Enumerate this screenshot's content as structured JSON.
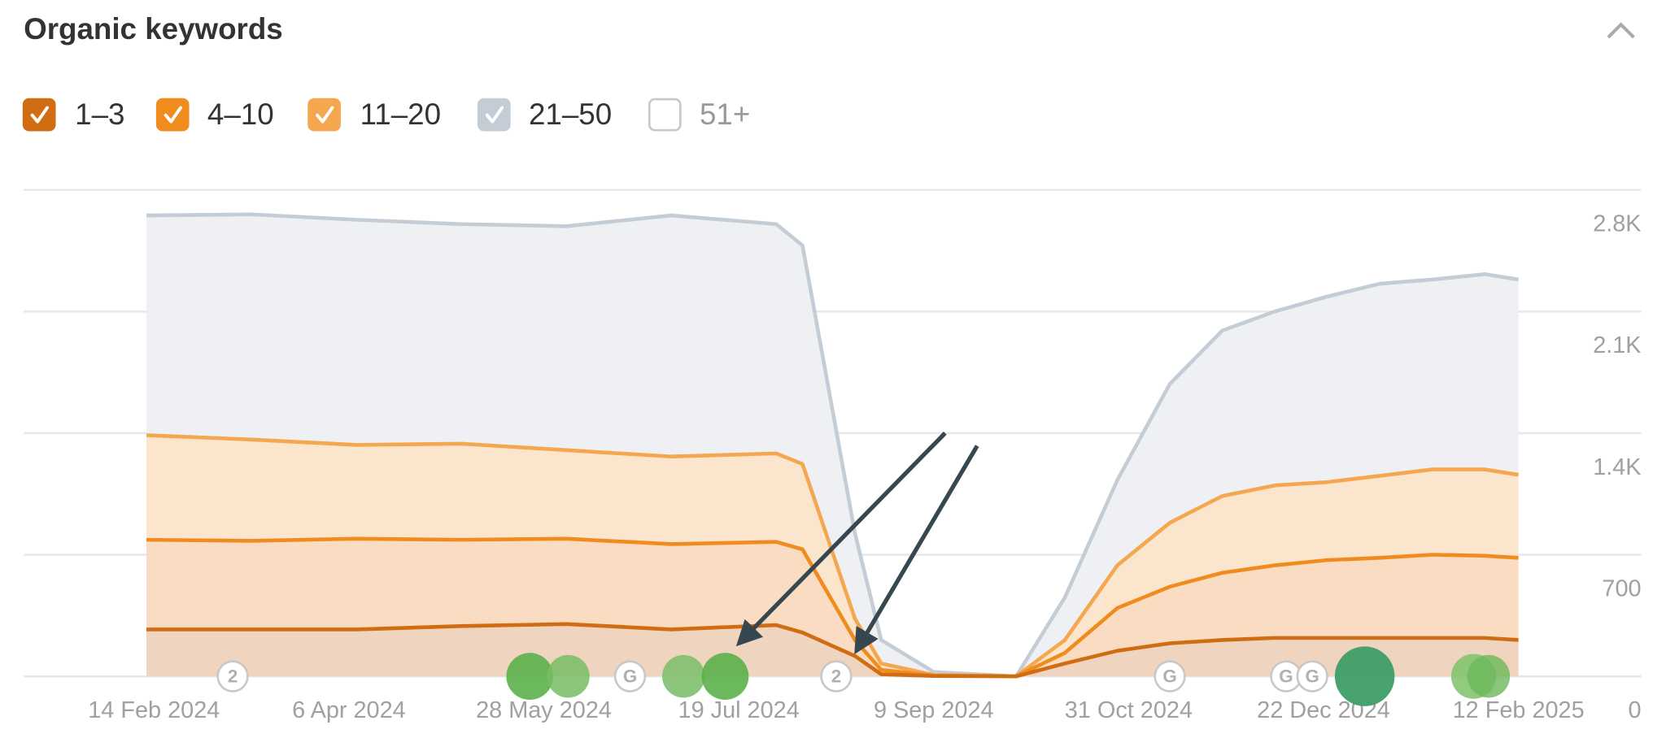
{
  "chart_data": {
    "type": "area",
    "title": "Organic keywords",
    "stacked": true,
    "x": [
      "2024-02-12",
      "2024-03-11",
      "2024-04-08",
      "2024-05-06",
      "2024-06-03",
      "2024-07-01",
      "2024-07-29",
      "2024-08-05",
      "2024-08-19",
      "2024-08-26",
      "2024-09-09",
      "2024-09-23",
      "2024-10-01",
      "2024-10-14",
      "2024-10-28",
      "2024-11-11",
      "2024-11-25",
      "2024-12-09",
      "2024-12-23",
      "2025-01-06",
      "2025-01-20",
      "2025-02-03",
      "2025-02-12"
    ],
    "series": [
      {
        "name": "1–3",
        "color": "#d06c12",
        "fill": "#efd4bf",
        "visible": true,
        "values": [
          270,
          270,
          270,
          289,
          301,
          270,
          295,
          252,
          117,
          12,
          2,
          1,
          0,
          74,
          147,
          190,
          209,
          221,
          221,
          221,
          221,
          221,
          209
        ]
      },
      {
        "name": "4–10",
        "color": "#f08c1e",
        "fill": "#f9dcc1",
        "visible": true,
        "values": [
          516,
          510,
          522,
          497,
          491,
          491,
          479,
          479,
          92,
          25,
          2,
          1,
          0,
          61,
          246,
          326,
          387,
          418,
          448,
          461,
          479,
          473,
          473
        ]
      },
      {
        "name": "11–20",
        "color": "#f5a74f",
        "fill": "#fce5cd",
        "visible": true,
        "values": [
          602,
          583,
          540,
          553,
          510,
          504,
          509,
          491,
          123,
          37,
          4,
          1,
          0,
          74,
          246,
          368,
          442,
          460,
          449,
          472,
          491,
          497,
          478
        ]
      },
      {
        "name": "21–50",
        "color": "#c4ccd6",
        "fill": "#eef0f4",
        "visible": true,
        "values": [
          1265,
          1296,
          1296,
          1264,
          1289,
          1388,
          1320,
          1258,
          491,
          135,
          17,
          7,
          0,
          245,
          491,
          799,
          952,
          1001,
          1068,
          1106,
          1093,
          1124,
          1124
        ]
      },
      {
        "name": "51+",
        "color": "#ffffff",
        "visible": false
      }
    ],
    "xlim": [
      "2024-02-12",
      "2025-02-12"
    ],
    "xticks": [
      {
        "value": "2024-02-14",
        "label": "14 Feb 2024"
      },
      {
        "value": "2024-04-06",
        "label": "6 Apr 2024"
      },
      {
        "value": "2024-05-28",
        "label": "28 May 2024"
      },
      {
        "value": "2024-07-19",
        "label": "19 Jul 2024"
      },
      {
        "value": "2024-09-09",
        "label": "9 Sep 2024"
      },
      {
        "value": "2024-10-31",
        "label": "31 Oct 2024"
      },
      {
        "value": "2024-12-22",
        "label": "22 Dec 2024"
      },
      {
        "value": "2025-02-12",
        "label": "12 Feb 2025"
      }
    ],
    "ylim": [
      0,
      2800
    ],
    "yticks": [
      0,
      700,
      {
        "value": 1400,
        "label": "1.4K"
      },
      {
        "value": 2100,
        "label": "2.1K"
      },
      {
        "value": 2800,
        "label": "2.8K"
      }
    ],
    "grid": true,
    "events": [
      {
        "x": "2024-03-06",
        "label": "2"
      },
      {
        "x": "2024-06-20",
        "label": "G"
      },
      {
        "x": "2024-08-14",
        "label": "2"
      },
      {
        "x": "2024-11-11",
        "label": "G"
      },
      {
        "x": "2024-12-12",
        "label": "G"
      },
      {
        "x": "2024-12-19",
        "label": "G"
      }
    ]
  }
}
